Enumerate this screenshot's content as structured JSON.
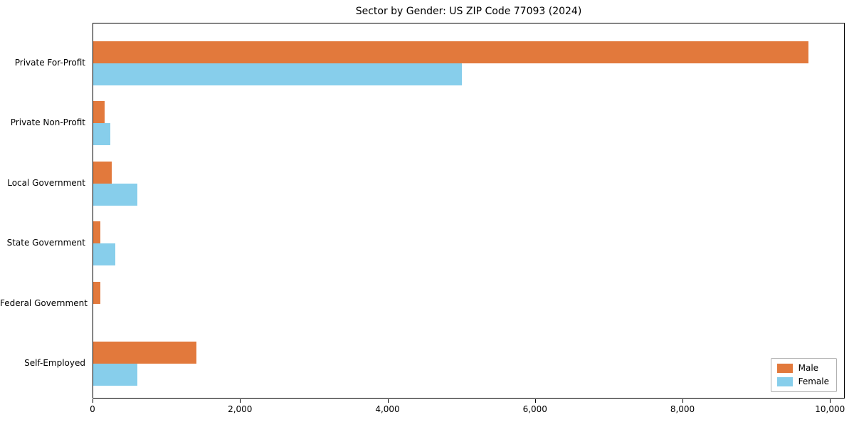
{
  "chart_data": {
    "type": "bar",
    "orientation": "horizontal",
    "title": "Sector by Gender: US ZIP Code 77093 (2024)",
    "categories": [
      "Private For-Profit",
      "Private Non-Profit",
      "Local Government",
      "State Government",
      "Federal Government",
      "Self-Employed"
    ],
    "series": [
      {
        "name": "Male",
        "color": "#E2793C",
        "values": [
          9700,
          150,
          250,
          100,
          100,
          1400
        ]
      },
      {
        "name": "Female",
        "color": "#87CEEB",
        "values": [
          5000,
          230,
          600,
          300,
          0,
          600
        ]
      }
    ],
    "xlabel": "",
    "ylabel": "",
    "xlim": [
      0,
      10200
    ],
    "x_ticks": [
      0,
      2000,
      4000,
      6000,
      8000,
      10000
    ],
    "x_tick_labels": [
      "0",
      "2,000",
      "4,000",
      "6,000",
      "8,000",
      "10,000"
    ],
    "legend_position": "lower right",
    "grid": false
  }
}
